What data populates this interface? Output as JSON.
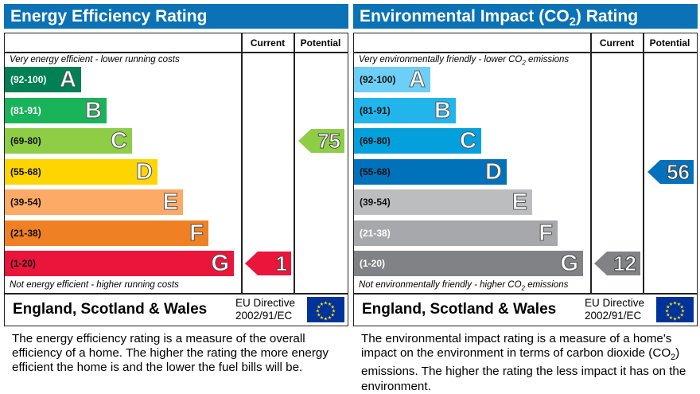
{
  "chart_data": [
    {
      "type": "bar",
      "title": "Energy Efficiency Rating",
      "columns": [
        "Current",
        "Potential"
      ],
      "top_note": "Very energy efficient - lower running costs",
      "bottom_note": "Not energy efficient - higher running costs",
      "bands": [
        {
          "range": "(92-100)",
          "letter": "A",
          "color": "#008054",
          "text": "#fff"
        },
        {
          "range": "(81-91)",
          "letter": "B",
          "color": "#19b459",
          "text": "#fff"
        },
        {
          "range": "(69-80)",
          "letter": "C",
          "color": "#8dce46",
          "text": "#111"
        },
        {
          "range": "(55-68)",
          "letter": "D",
          "color": "#ffd500",
          "text": "#111"
        },
        {
          "range": "(39-54)",
          "letter": "E",
          "color": "#fcaa65",
          "text": "#111"
        },
        {
          "range": "(21-38)",
          "letter": "F",
          "color": "#ef8023",
          "text": "#111"
        },
        {
          "range": "(1-20)",
          "letter": "G",
          "color": "#e9153b",
          "text": "#111"
        }
      ],
      "current": {
        "value": 1,
        "band": "G"
      },
      "potential": {
        "value": 75,
        "band": "C"
      },
      "footer": "England, Scotland & Wales",
      "directive": [
        "EU Directive",
        "2002/91/EC"
      ],
      "description": "The energy efficiency rating is a measure of the overall efficiency of a home. The higher the rating the more energy efficient the home is and the lower the fuel bills will be."
    },
    {
      "type": "bar",
      "title": "Environmental Impact (CO2) Rating",
      "columns": [
        "Current",
        "Potential"
      ],
      "top_note": "Very environmentally friendly - lower CO2 emissions",
      "bottom_note": "Not environmentally friendly - higher CO2 emissions",
      "bands": [
        {
          "range": "(92-100)",
          "letter": "A",
          "color": "#6dcff6",
          "text": "#111"
        },
        {
          "range": "(81-91)",
          "letter": "B",
          "color": "#22b5eb",
          "text": "#111"
        },
        {
          "range": "(69-80)",
          "letter": "C",
          "color": "#03a0dc",
          "text": "#111"
        },
        {
          "range": "(55-68)",
          "letter": "D",
          "color": "#0072bc",
          "text": "#111"
        },
        {
          "range": "(39-54)",
          "letter": "E",
          "color": "#bbbdbf",
          "text": "#111"
        },
        {
          "range": "(21-38)",
          "letter": "F",
          "color": "#a6a8ab",
          "text": "#fff"
        },
        {
          "range": "(1-20)",
          "letter": "G",
          "color": "#808285",
          "text": "#fff"
        }
      ],
      "current": {
        "value": 12,
        "band": "G"
      },
      "potential": {
        "value": 56,
        "band": "D"
      },
      "footer": "England, Scotland & Wales",
      "directive": [
        "EU Directive",
        "2002/91/EC"
      ],
      "description": "The environmental impact rating is a measure of a home's impact on the environment in terms of carbon dioxide (CO2) emissions. The higher the rating the less impact it has on the environment."
    }
  ]
}
